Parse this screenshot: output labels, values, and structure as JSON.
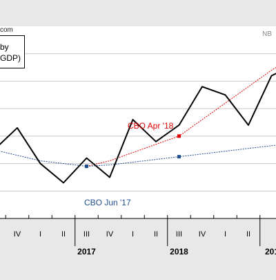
{
  "source_fragment": "com",
  "watermark": "NB",
  "legend": {
    "line1": "by",
    "line2": "GDP)"
  },
  "annotations": {
    "cbo_apr": "CBO Apr '18",
    "cbo_jun": "CBO Jun '17"
  },
  "colors": {
    "actual": "#000000",
    "cbo_apr": "#e00000",
    "cbo_jun": "#1f4e8c",
    "grid": "#c8c8c8",
    "plot_bg": "#ffffff"
  },
  "chart_data": {
    "type": "line",
    "title": "",
    "xlabel": "",
    "ylabel": "",
    "quarter_ticks": [
      "IV",
      "I",
      "II",
      "III",
      "IV",
      "I",
      "II",
      "III",
      "IV",
      "I",
      "II"
    ],
    "year_labels": [
      "2017",
      "2018",
      "201"
    ],
    "grid": true,
    "x": [
      0,
      1,
      2,
      3,
      4,
      5,
      6,
      7,
      8,
      9,
      10,
      11,
      12,
      13,
      14
    ],
    "series": [
      {
        "name": "",
        "values": [
          79.5,
          80.3,
          79.0,
          78.3,
          79.2,
          78.5,
          80.6,
          79.8,
          80.4,
          81.8,
          81.5,
          80.4,
          82.2,
          82.6,
          83.0
        ]
      },
      {
        "name": "CBO Apr '18",
        "values": [
          null,
          null,
          null,
          null,
          78.9,
          79.1,
          79.4,
          79.7,
          80.0,
          80.6,
          81.2,
          81.8,
          82.4,
          82.9,
          83.2
        ]
      },
      {
        "name": "CBO Jun '17",
        "values": [
          79.5,
          79.3,
          79.1,
          79.0,
          78.9,
          78.95,
          79.05,
          79.15,
          79.25,
          79.35,
          79.45,
          79.55,
          79.65,
          79.75,
          79.85
        ]
      }
    ],
    "ylim": [
      77.0,
      84.0
    ],
    "y_gridlines": [
      78.0,
      79.0,
      80.0,
      81.0,
      82.0,
      83.0
    ]
  }
}
